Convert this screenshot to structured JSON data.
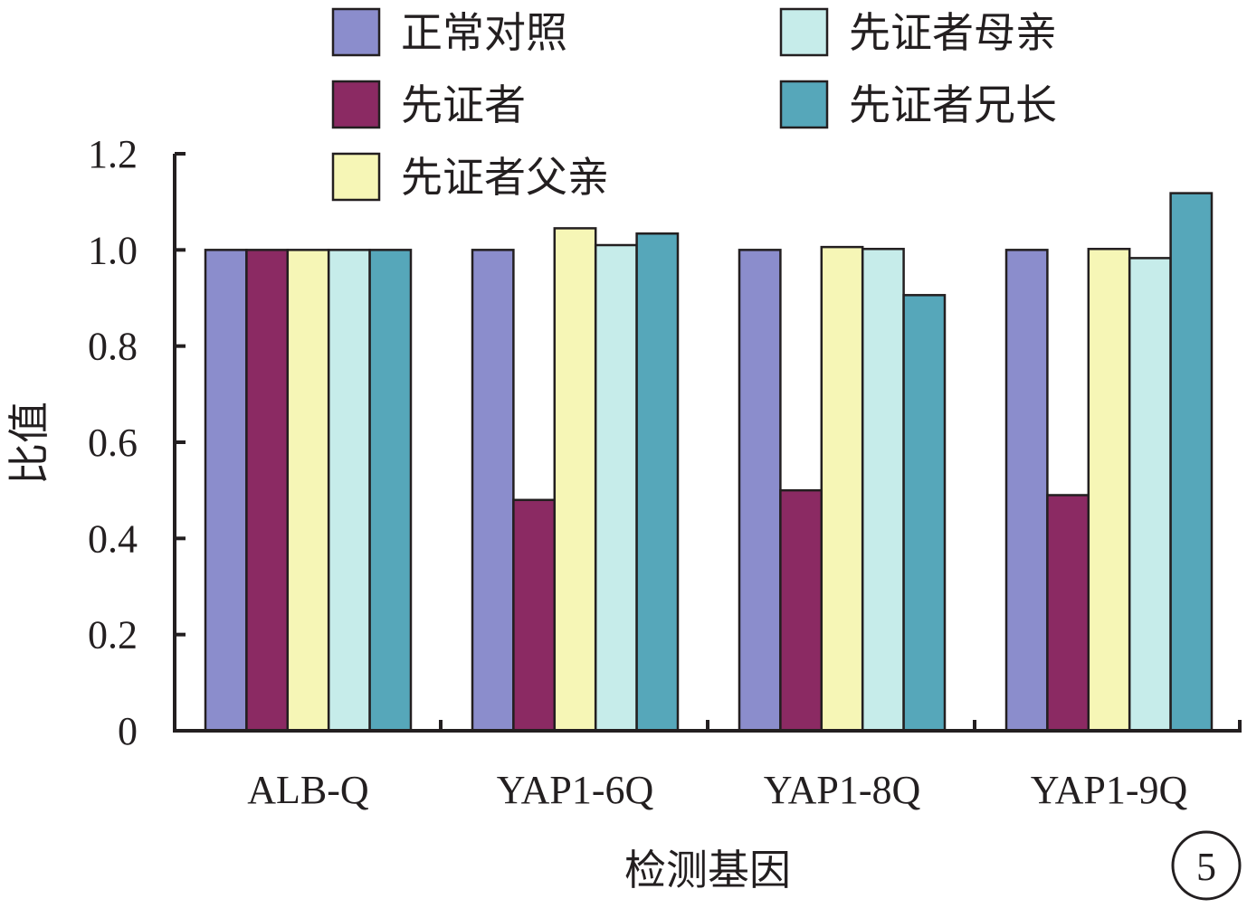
{
  "chart_data": {
    "type": "bar",
    "title": "",
    "xlabel": "检测基因",
    "ylabel": "比值",
    "ylim": [
      0,
      1.2
    ],
    "yticks": [
      "0",
      "0.2",
      "0.4",
      "0.6",
      "0.8",
      "1.0",
      "1.2"
    ],
    "ytick_values": [
      0,
      0.2,
      0.4,
      0.6,
      0.8,
      1.0,
      1.2
    ],
    "categories": [
      "ALB-Q",
      "YAP1-6Q",
      "YAP1-8Q",
      "YAP1-9Q"
    ],
    "series": [
      {
        "name": "正常对照",
        "color": "#8b8dcc",
        "values": [
          1.0,
          1.0,
          1.0,
          1.0
        ]
      },
      {
        "name": "先证者",
        "color": "#8b2a63",
        "values": [
          1.0,
          0.48,
          0.5,
          0.49
        ]
      },
      {
        "name": "先证者父亲",
        "color": "#f6f6b6",
        "values": [
          1.0,
          1.045,
          1.006,
          1.002
        ]
      },
      {
        "name": "先证者母亲",
        "color": "#c6ecea",
        "values": [
          1.0,
          1.01,
          1.002,
          0.983
        ]
      },
      {
        "name": "先证者兄长",
        "color": "#56a7ba",
        "values": [
          1.0,
          1.034,
          0.906,
          1.118
        ]
      }
    ],
    "legend_position": "top",
    "grid": false,
    "panel_label": "5"
  }
}
